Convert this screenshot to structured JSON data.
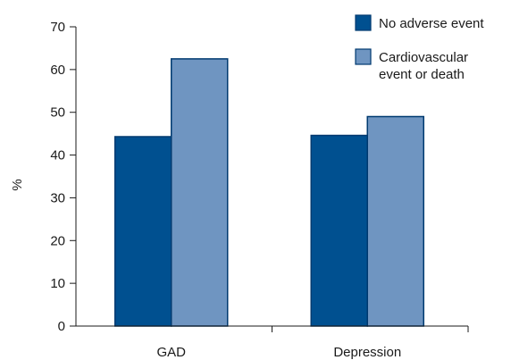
{
  "chart_data": {
    "type": "bar",
    "categories": [
      "GAD",
      "Depression"
    ],
    "series": [
      {
        "name": "No adverse event",
        "values": [
          44.3,
          44.6
        ],
        "color": "#005090"
      },
      {
        "name": "Cardiovascular event or death",
        "name_lines": [
          "Cardiovascular",
          "event or death"
        ],
        "values": [
          62.5,
          49.0
        ],
        "color": "#6f95c1"
      }
    ],
    "title": "",
    "xlabel": "",
    "ylabel": "%",
    "ylim": [
      0,
      70
    ],
    "yticks": [
      0,
      10,
      20,
      30,
      40,
      50,
      60,
      70
    ],
    "grid": false,
    "legend_position": "top-right",
    "bar_edge_color": "#003a70"
  }
}
